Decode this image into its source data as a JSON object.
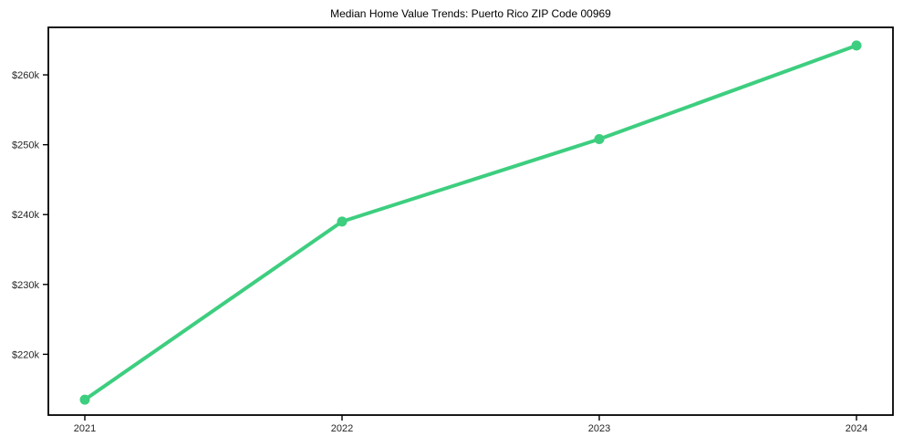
{
  "chart_data": {
    "type": "line",
    "title": "Median Home Value Trends: Puerto Rico ZIP Code 00969",
    "x": [
      2021,
      2022,
      2023,
      2024
    ],
    "x_tick_labels": [
      "2021",
      "2022",
      "2023",
      "2024"
    ],
    "values": [
      213500,
      239000,
      250800,
      264200
    ],
    "series_name": "Median Home Value",
    "y_ticks": [
      220000,
      230000,
      240000,
      250000,
      260000
    ],
    "y_tick_labels": [
      "$220k",
      "$230k",
      "$240k",
      "$250k",
      "$260k"
    ],
    "ylim": [
      211300,
      266800
    ],
    "xlabel": "",
    "ylabel": "",
    "grid": false,
    "legend_position": "none",
    "colors": {
      "line": "#3dce7f",
      "marker": "#3dce7f",
      "axis": "#000000",
      "tick_text": "#262626",
      "title_text": "#000000",
      "background": "#ffffff"
    }
  }
}
